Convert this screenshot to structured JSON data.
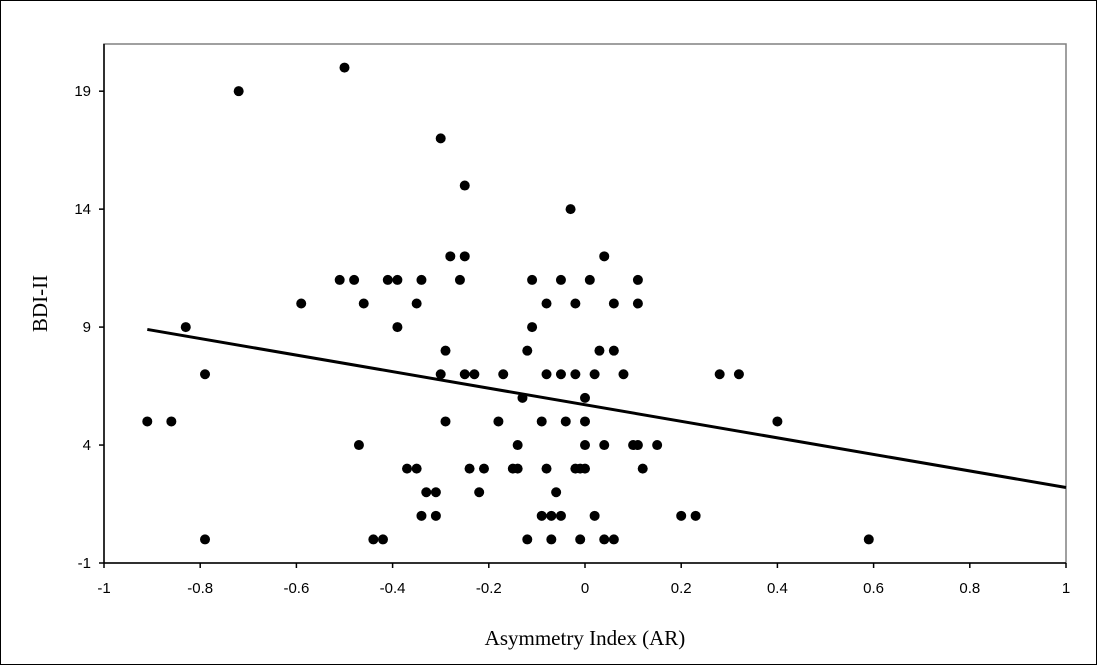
{
  "chart_data": {
    "type": "scatter",
    "title": "",
    "xlabel": "Asymmetry Index (AR)",
    "ylabel": "BDI-II",
    "xlim": [
      -1,
      1
    ],
    "ylim": [
      -1,
      21
    ],
    "x_ticks": [
      -1,
      -0.8,
      -0.6,
      -0.4,
      -0.2,
      0,
      0.2,
      0.4,
      0.6,
      0.8,
      1
    ],
    "x_tick_labels": [
      "-1",
      "-0.8",
      "-0.6",
      "-0.4",
      "-0.2",
      "0",
      "0.2",
      "0.4",
      "0.6",
      "0.8",
      "1"
    ],
    "y_ticks": [
      -1,
      4,
      9,
      14,
      19
    ],
    "y_tick_labels": [
      "-1",
      "4",
      "9",
      "14",
      "19"
    ],
    "grid": false,
    "legend": "none",
    "colors": {
      "points": "#000000",
      "trendline": "#000000",
      "plot_border": "#808080"
    },
    "trendline": {
      "x": [
        -0.91,
        1.0
      ],
      "y": [
        8.9,
        2.2
      ]
    },
    "points": [
      {
        "x": -0.91,
        "y": 5
      },
      {
        "x": -0.86,
        "y": 5
      },
      {
        "x": -0.83,
        "y": 9
      },
      {
        "x": -0.79,
        "y": 7
      },
      {
        "x": -0.79,
        "y": 0
      },
      {
        "x": -0.72,
        "y": 19
      },
      {
        "x": -0.59,
        "y": 10
      },
      {
        "x": -0.5,
        "y": 20
      },
      {
        "x": -0.51,
        "y": 11
      },
      {
        "x": -0.48,
        "y": 11
      },
      {
        "x": -0.47,
        "y": 4
      },
      {
        "x": -0.46,
        "y": 10
      },
      {
        "x": -0.44,
        "y": 0
      },
      {
        "x": -0.42,
        "y": 0
      },
      {
        "x": -0.41,
        "y": 11
      },
      {
        "x": -0.39,
        "y": 11
      },
      {
        "x": -0.39,
        "y": 9
      },
      {
        "x": -0.37,
        "y": 3
      },
      {
        "x": -0.35,
        "y": 3
      },
      {
        "x": -0.35,
        "y": 10
      },
      {
        "x": -0.34,
        "y": 11
      },
      {
        "x": -0.34,
        "y": 1
      },
      {
        "x": -0.33,
        "y": 2
      },
      {
        "x": -0.31,
        "y": 2
      },
      {
        "x": -0.31,
        "y": 1
      },
      {
        "x": -0.3,
        "y": 17
      },
      {
        "x": -0.3,
        "y": 7
      },
      {
        "x": -0.29,
        "y": 8
      },
      {
        "x": -0.29,
        "y": 5
      },
      {
        "x": -0.28,
        "y": 12
      },
      {
        "x": -0.26,
        "y": 11
      },
      {
        "x": -0.25,
        "y": 15
      },
      {
        "x": -0.25,
        "y": 12
      },
      {
        "x": -0.25,
        "y": 7
      },
      {
        "x": -0.23,
        "y": 7
      },
      {
        "x": -0.24,
        "y": 3
      },
      {
        "x": -0.22,
        "y": 2
      },
      {
        "x": -0.21,
        "y": 3
      },
      {
        "x": -0.18,
        "y": 5
      },
      {
        "x": -0.17,
        "y": 7
      },
      {
        "x": -0.15,
        "y": 3
      },
      {
        "x": -0.14,
        "y": 3
      },
      {
        "x": -0.14,
        "y": 4
      },
      {
        "x": -0.13,
        "y": 6
      },
      {
        "x": -0.12,
        "y": 8
      },
      {
        "x": -0.12,
        "y": 0
      },
      {
        "x": -0.11,
        "y": 11
      },
      {
        "x": -0.11,
        "y": 9
      },
      {
        "x": -0.09,
        "y": 5
      },
      {
        "x": -0.09,
        "y": 1
      },
      {
        "x": -0.08,
        "y": 7
      },
      {
        "x": -0.08,
        "y": 3
      },
      {
        "x": -0.08,
        "y": 10
      },
      {
        "x": -0.07,
        "y": 1
      },
      {
        "x": -0.07,
        "y": 0
      },
      {
        "x": -0.06,
        "y": 2
      },
      {
        "x": -0.05,
        "y": 7
      },
      {
        "x": -0.05,
        "y": 11
      },
      {
        "x": -0.05,
        "y": 1
      },
      {
        "x": -0.04,
        "y": 5
      },
      {
        "x": -0.03,
        "y": 14
      },
      {
        "x": -0.02,
        "y": 10
      },
      {
        "x": -0.02,
        "y": 7
      },
      {
        "x": -0.02,
        "y": 3
      },
      {
        "x": -0.01,
        "y": 3
      },
      {
        "x": -0.01,
        "y": 0
      },
      {
        "x": 0,
        "y": 6
      },
      {
        "x": 0,
        "y": 5
      },
      {
        "x": 0,
        "y": 4
      },
      {
        "x": 0,
        "y": 3
      },
      {
        "x": 0.01,
        "y": 11
      },
      {
        "x": 0.02,
        "y": 7
      },
      {
        "x": 0.02,
        "y": 1
      },
      {
        "x": 0.03,
        "y": 8
      },
      {
        "x": 0.04,
        "y": 12
      },
      {
        "x": 0.04,
        "y": 4
      },
      {
        "x": 0.04,
        "y": 0
      },
      {
        "x": 0.06,
        "y": 10
      },
      {
        "x": 0.06,
        "y": 8
      },
      {
        "x": 0.06,
        "y": 0
      },
      {
        "x": 0.08,
        "y": 7
      },
      {
        "x": 0.1,
        "y": 4
      },
      {
        "x": 0.11,
        "y": 4
      },
      {
        "x": 0.11,
        "y": 11
      },
      {
        "x": 0.11,
        "y": 10
      },
      {
        "x": 0.12,
        "y": 3
      },
      {
        "x": 0.15,
        "y": 4
      },
      {
        "x": 0.2,
        "y": 1
      },
      {
        "x": 0.23,
        "y": 1
      },
      {
        "x": 0.28,
        "y": 7
      },
      {
        "x": 0.32,
        "y": 7
      },
      {
        "x": 0.4,
        "y": 5
      },
      {
        "x": 0.59,
        "y": 0
      }
    ]
  }
}
